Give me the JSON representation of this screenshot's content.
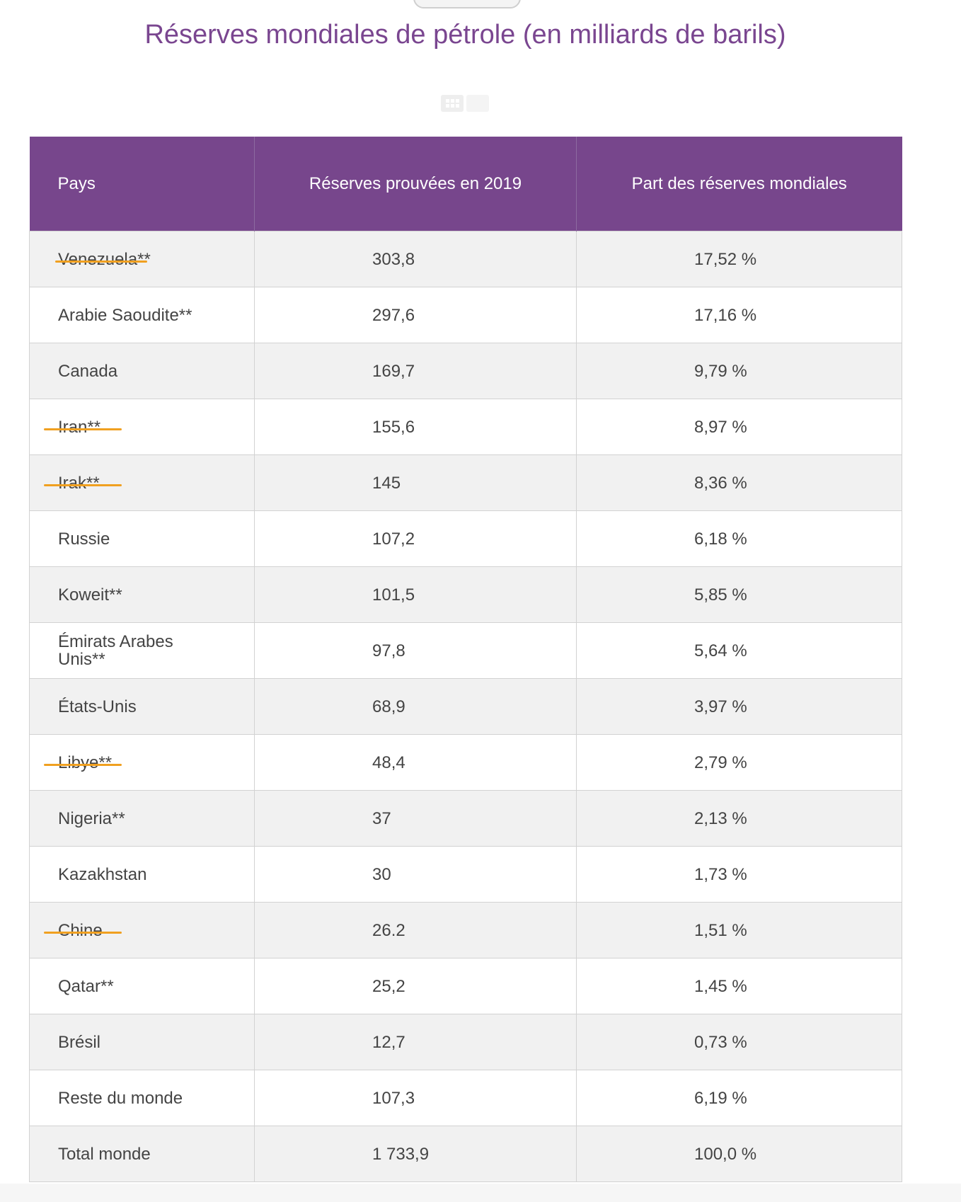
{
  "title": "Réserves mondiales de pétrole (en milliards de barils)",
  "table": {
    "headers": {
      "country": "Pays",
      "reserves": "Réserves prouvées en 2019",
      "share": "Part des réserves mondiales"
    },
    "rows": [
      {
        "country": "Venezuela**",
        "reserves": "303,8",
        "share": "17,52 %",
        "struck": true
      },
      {
        "country": "Arabie Saoudite**",
        "reserves": "297,6",
        "share": "17,16 %",
        "struck": false
      },
      {
        "country": "Canada",
        "reserves": "169,7",
        "share": "9,79 %",
        "struck": false
      },
      {
        "country": "Iran**",
        "reserves": "155,6",
        "share": "8,97 %",
        "struck": true
      },
      {
        "country": "Irak**",
        "reserves": "145",
        "share": "8,36 %",
        "struck": true
      },
      {
        "country": "Russie",
        "reserves": "107,2",
        "share": "6,18 %",
        "struck": false
      },
      {
        "country": "Koweit**",
        "reserves": "101,5",
        "share": "5,85 %",
        "struck": false
      },
      {
        "country": "Émirats Arabes Unis**",
        "reserves": "97,8",
        "share": "5,64 %",
        "struck": false
      },
      {
        "country": "États-Unis",
        "reserves": "68,9",
        "share": "3,97 %",
        "struck": false
      },
      {
        "country": "Libye**",
        "reserves": "48,4",
        "share": "2,79 %",
        "struck": true
      },
      {
        "country": "Nigeria**",
        "reserves": "37",
        "share": "2,13 %",
        "struck": false
      },
      {
        "country": "Kazakhstan",
        "reserves": "30",
        "share": "1,73 %",
        "struck": false
      },
      {
        "country": "Chine",
        "reserves": "26.2",
        "share": "1,51 %",
        "struck": true
      },
      {
        "country": "Qatar**",
        "reserves": "25,2",
        "share": "1,45 %",
        "struck": false
      },
      {
        "country": "Brésil",
        "reserves": "12,7",
        "share": "0,73 %",
        "struck": false
      },
      {
        "country": "Reste du monde",
        "reserves": "107,3",
        "share": "6,19 %",
        "struck": false
      },
      {
        "country": "Total monde",
        "reserves": "1 733,9",
        "share": "100,0 %",
        "struck": false
      }
    ]
  },
  "colors": {
    "accent": "#77468c",
    "title": "#7a4690",
    "annotation": "#f0a020"
  },
  "icons": {
    "grid_view": "grid-icon",
    "list_view": "list-icon"
  }
}
